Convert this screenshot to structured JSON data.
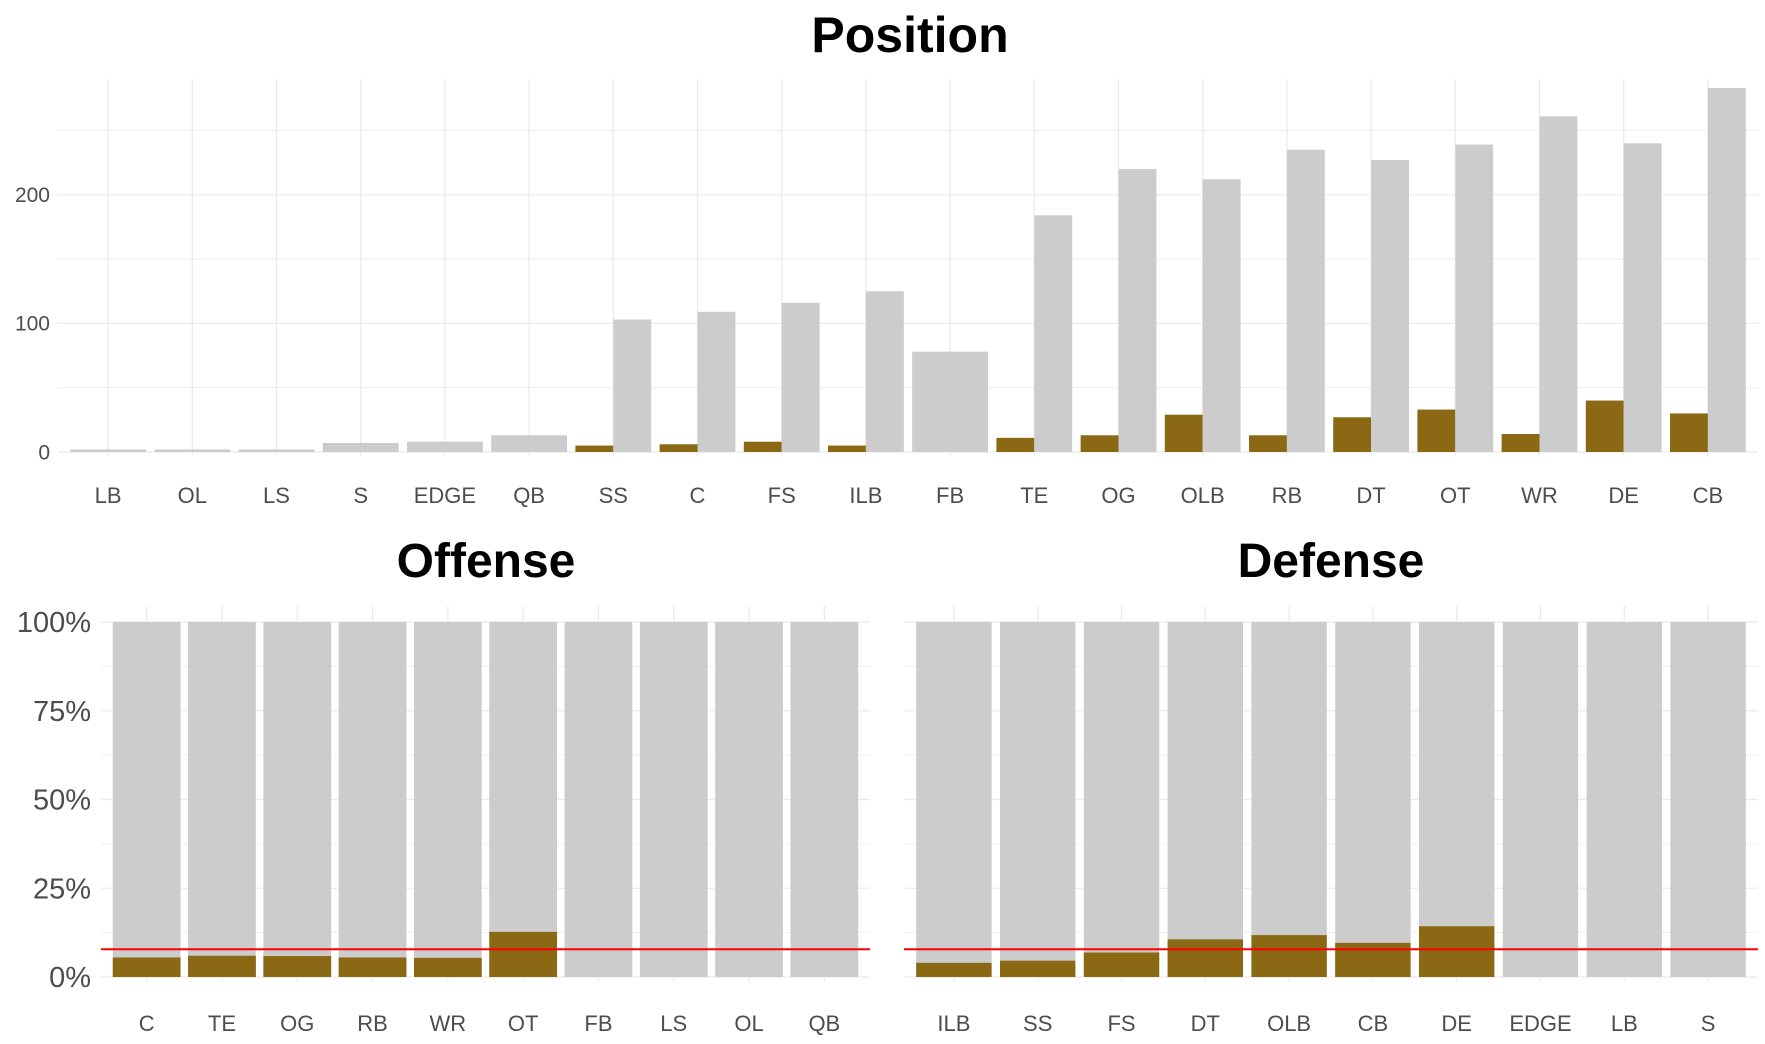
{
  "colors": {
    "highlight": "#8B6914",
    "total": "#CCCCCC",
    "grid": "#EBEBEB",
    "reference_line": "#FF0000",
    "tick_text": "#4D4D4D",
    "title_text": "#000000"
  },
  "chart_data": [
    {
      "type": "bar",
      "title": "Position",
      "xlabel": "",
      "ylabel": "",
      "categories": [
        "LB",
        "OL",
        "LS",
        "S",
        "EDGE",
        "QB",
        "SS",
        "C",
        "FS",
        "ILB",
        "FB",
        "TE",
        "OG",
        "OLB",
        "RB",
        "DT",
        "OT",
        "WR",
        "DE",
        "CB"
      ],
      "series": [
        {
          "values": [
            0,
            0,
            0,
            0,
            0,
            0,
            5,
            6,
            8,
            5,
            0,
            11,
            13,
            29,
            13,
            27,
            33,
            14,
            40,
            30
          ]
        },
        {
          "values": [
            2,
            2,
            2,
            7,
            8,
            13,
            103,
            109,
            116,
            125,
            78,
            184,
            220,
            212,
            235,
            227,
            239,
            261,
            240,
            283
          ]
        }
      ],
      "ylim": [
        0,
        290
      ],
      "yticks": [
        0,
        100,
        200
      ],
      "grid": true
    },
    {
      "type": "bar",
      "title": "Offense",
      "xlabel": "",
      "ylabel": "",
      "categories": [
        "C",
        "TE",
        "OG",
        "RB",
        "WR",
        "OT",
        "FB",
        "LS",
        "OL",
        "QB"
      ],
      "series": [
        {
          "values": [
            5.5,
            6.0,
            5.9,
            5.5,
            5.4,
            12.7,
            0,
            0,
            0,
            0
          ]
        },
        {
          "values": [
            100,
            100,
            100,
            100,
            100,
            100,
            100,
            100,
            100,
            100
          ]
        }
      ],
      "reference_line": 7.8,
      "ylim": [
        0,
        100
      ],
      "yticks": [
        "0%",
        "25%",
        "50%",
        "75%",
        "100%"
      ],
      "grid": true
    },
    {
      "type": "bar",
      "title": "Defense",
      "xlabel": "",
      "ylabel": "",
      "categories": [
        "ILB",
        "SS",
        "FS",
        "DT",
        "OLB",
        "CB",
        "DE",
        "EDGE",
        "LB",
        "S"
      ],
      "series": [
        {
          "values": [
            4.0,
            4.6,
            6.9,
            10.6,
            11.8,
            9.6,
            14.3,
            0,
            0,
            0
          ]
        },
        {
          "values": [
            100,
            100,
            100,
            100,
            100,
            100,
            100,
            100,
            100,
            100
          ]
        }
      ],
      "reference_line": 7.8,
      "ylim": [
        0,
        100
      ],
      "grid": true
    }
  ]
}
